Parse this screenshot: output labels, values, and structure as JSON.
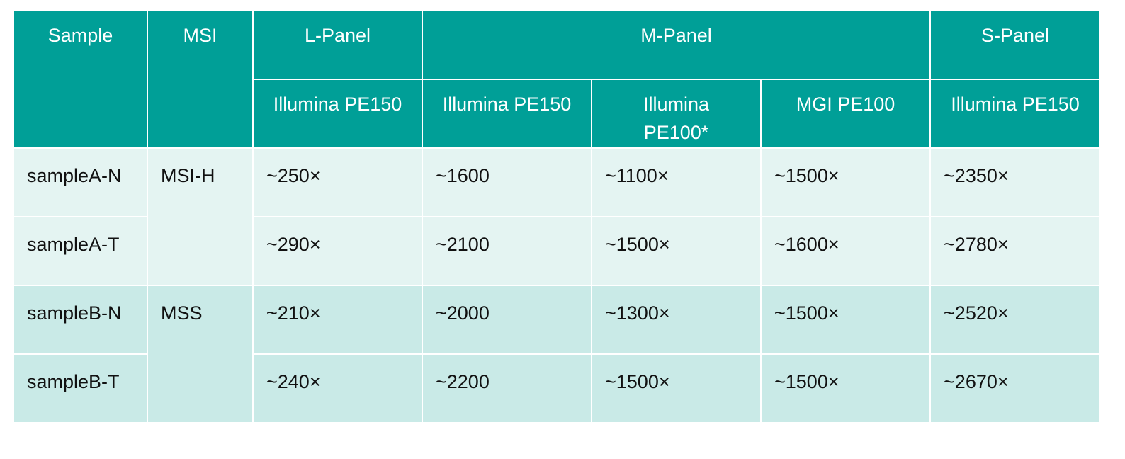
{
  "table": {
    "header": {
      "groups": [
        "Sample",
        "MSI",
        "L-Panel",
        "M-Panel",
        "S-Panel"
      ],
      "platforms": [
        "Illumina PE150",
        "Illumina PE150",
        "Illumina PE100*",
        "MGI PE100",
        "Illumina PE150"
      ]
    },
    "rows": [
      [
        "sampleA-N",
        "MSI-H",
        "~250×",
        "~1600",
        "~1100×",
        "~1500×",
        "~2350×"
      ],
      [
        "sampleA-T",
        "~290×",
        "~2100",
        "~1500×",
        "~1600×",
        "~2780×"
      ],
      [
        "sampleB-N",
        "MSS",
        "~210×",
        "~2000",
        "~1300×",
        "~1500×",
        "~2520×"
      ],
      [
        "sampleB-T",
        "~240×",
        "~2200",
        "~1500×",
        "~1500×",
        "~2670×"
      ]
    ]
  }
}
